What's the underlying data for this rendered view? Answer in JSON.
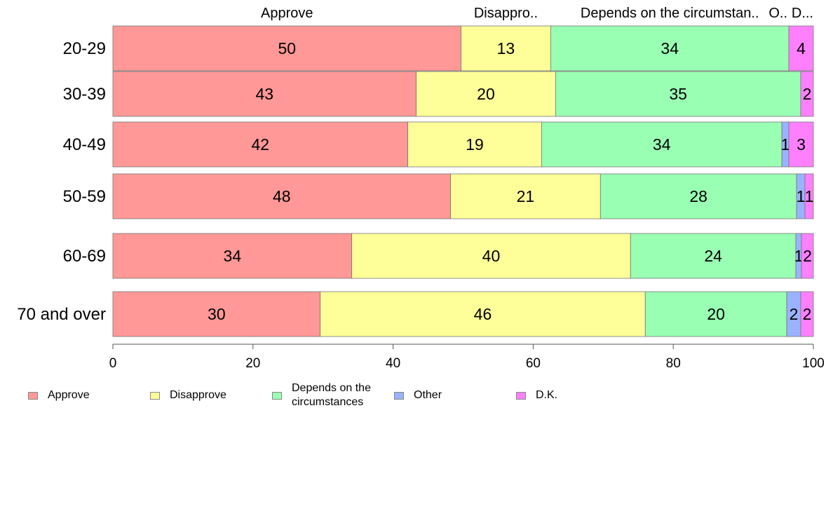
{
  "chart_data": {
    "type": "bar",
    "orientation": "horizontal",
    "stacked": true,
    "categories": [
      "20-29",
      "30-39",
      "40-49",
      "50-59",
      "60-69",
      "70 and over"
    ],
    "series": [
      {
        "name": "Approve",
        "color": "#ff9896",
        "values": [
          49.7,
          43.3,
          42.1,
          48.2,
          34.1,
          29.6
        ],
        "labels": [
          "50",
          "43",
          "42",
          "48",
          "34",
          "30"
        ]
      },
      {
        "name": "Disapprove",
        "color": "#ffff99",
        "values": [
          12.8,
          19.9,
          19.1,
          21.4,
          39.8,
          46.4
        ],
        "labels": [
          "13",
          "20",
          "19",
          "21",
          "40",
          "46"
        ]
      },
      {
        "name": "Depends on the circumstances",
        "color": "#99ffb3",
        "values": [
          34.0,
          35.0,
          34.3,
          28.0,
          23.6,
          20.2
        ],
        "labels": [
          "34",
          "35",
          "34",
          "28",
          "24",
          "20"
        ]
      },
      {
        "name": "Other",
        "color": "#99b3ff",
        "values": [
          0.0,
          0.0,
          1.0,
          1.2,
          0.8,
          2.0
        ],
        "labels": [
          "",
          "",
          "1",
          "1",
          "1",
          "2"
        ]
      },
      {
        "name": "D.K.",
        "color": "#ff80ff",
        "values": [
          3.5,
          1.8,
          3.5,
          1.2,
          1.7,
          1.8
        ],
        "labels": [
          "4",
          "2",
          "3",
          "1",
          "2",
          "2"
        ]
      }
    ],
    "top_labels": [
      "Approve",
      "Disappro..",
      "Depends on the circumstan..",
      "O..",
      "D..."
    ],
    "xlim": [
      0,
      100
    ],
    "x_ticks": [
      "0",
      "20",
      "40",
      "60",
      "80",
      "100"
    ],
    "legend_position": "bottom",
    "legend_labels": [
      "Approve",
      "Disapprove",
      "Depends on the\ncircumstances",
      "Other",
      "D.K."
    ]
  }
}
